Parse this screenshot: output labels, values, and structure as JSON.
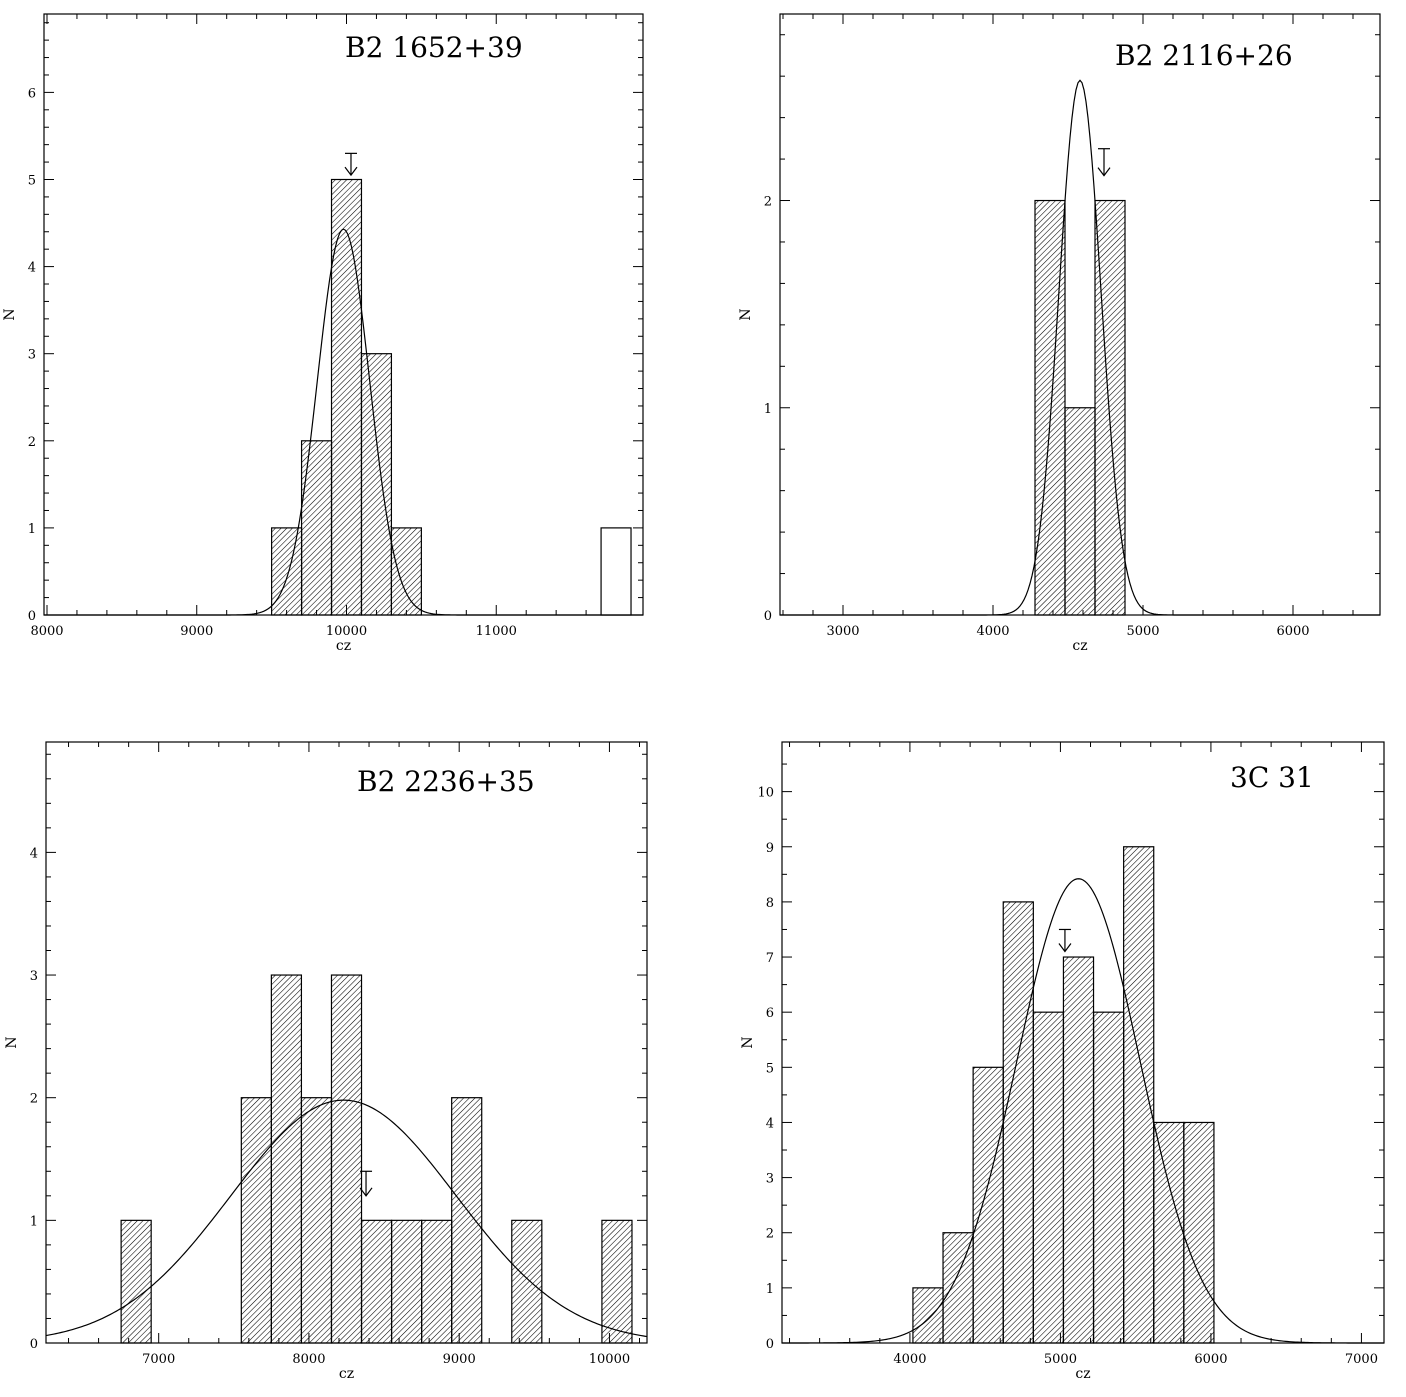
{
  "figure": {
    "colors": {
      "ink": "#000000",
      "background": "#ffffff"
    }
  },
  "chart_data": [
    {
      "type": "bar",
      "title": "B2 1652+39",
      "xlabel": "cz",
      "ylabel": "N",
      "xlim": [
        7980,
        11980
      ],
      "ylim": [
        0,
        6.9
      ],
      "xticks": [
        8000,
        9000,
        10000,
        11000
      ],
      "yticks": [
        0,
        1,
        2,
        3,
        4,
        5,
        6
      ],
      "x_minor_step": 200,
      "y_minor_step": 0.2,
      "bin_width": 200,
      "bins": [
        {
          "x0": 9500,
          "count": 1,
          "filled": true
        },
        {
          "x0": 9700,
          "count": 2,
          "filled": true
        },
        {
          "x0": 9900,
          "count": 5,
          "filled": true
        },
        {
          "x0": 10100,
          "count": 3,
          "filled": true
        },
        {
          "x0": 10300,
          "count": 1,
          "filled": true
        },
        {
          "x0": 11700,
          "count": 1,
          "filled": false
        }
      ],
      "gaussian": {
        "mean": 9980,
        "sigma": 175,
        "peak": 4.43
      },
      "arrow": {
        "x": 10030,
        "y_top": 5.3,
        "y_tip": 5.05
      }
    },
    {
      "type": "bar",
      "title": "B2 2116+26",
      "xlabel": "cz",
      "ylabel": "N",
      "xlim": [
        2580,
        6580
      ],
      "ylim": [
        0,
        2.9
      ],
      "xticks": [
        3000,
        4000,
        5000,
        6000
      ],
      "yticks": [
        0,
        1,
        2
      ],
      "x_minor_step": 200,
      "y_minor_step": 0.2,
      "bin_width": 200,
      "bins": [
        {
          "x0": 4280,
          "count": 2,
          "filled": true
        },
        {
          "x0": 4480,
          "count": 1,
          "filled": true
        },
        {
          "x0": 4680,
          "count": 2,
          "filled": true
        }
      ],
      "gaussian": {
        "mean": 4580,
        "sigma": 140,
        "peak": 2.58
      },
      "arrow": {
        "x": 4740,
        "y_top": 2.25,
        "y_tip": 2.12
      }
    },
    {
      "type": "bar",
      "title": "B2 2236+35",
      "xlabel": "cz",
      "ylabel": "N",
      "xlim": [
        6250,
        10250
      ],
      "ylim": [
        0,
        4.9
      ],
      "xticks": [
        7000,
        8000,
        9000,
        10000
      ],
      "yticks": [
        0,
        1,
        2,
        3,
        4
      ],
      "x_minor_step": 200,
      "y_minor_step": 0.2,
      "bin_width": 200,
      "bins": [
        {
          "x0": 6750,
          "count": 1,
          "filled": true
        },
        {
          "x0": 7550,
          "count": 2,
          "filled": true
        },
        {
          "x0": 7750,
          "count": 3,
          "filled": true
        },
        {
          "x0": 7950,
          "count": 2,
          "filled": true
        },
        {
          "x0": 8150,
          "count": 3,
          "filled": true
        },
        {
          "x0": 8350,
          "count": 1,
          "filled": true
        },
        {
          "x0": 8550,
          "count": 1,
          "filled": true
        },
        {
          "x0": 8750,
          "count": 1,
          "filled": true
        },
        {
          "x0": 8950,
          "count": 2,
          "filled": true
        },
        {
          "x0": 9350,
          "count": 1,
          "filled": true
        },
        {
          "x0": 9950,
          "count": 1,
          "filled": true
        }
      ],
      "gaussian": {
        "mean": 8230,
        "sigma": 750,
        "peak": 1.98
      },
      "arrow": {
        "x": 8380,
        "y_top": 1.4,
        "y_tip": 1.2
      }
    },
    {
      "type": "bar",
      "title": "3C 31",
      "xlabel": "cz",
      "ylabel": "N",
      "xlim": [
        3150,
        7150
      ],
      "ylim": [
        0,
        10.9
      ],
      "xticks": [
        4000,
        5000,
        6000,
        7000
      ],
      "yticks": [
        0,
        1,
        2,
        3,
        4,
        5,
        6,
        7,
        8,
        9,
        10
      ],
      "x_minor_step": 200,
      "y_minor_step": 0.5,
      "bin_width": 200,
      "bins": [
        {
          "x0": 4020,
          "count": 1,
          "filled": true
        },
        {
          "x0": 4220,
          "count": 2,
          "filled": true
        },
        {
          "x0": 4420,
          "count": 5,
          "filled": true
        },
        {
          "x0": 4620,
          "count": 8,
          "filled": true
        },
        {
          "x0": 4820,
          "count": 6,
          "filled": true
        },
        {
          "x0": 5020,
          "count": 7,
          "filled": true
        },
        {
          "x0": 5220,
          "count": 6,
          "filled": true
        },
        {
          "x0": 5420,
          "count": 9,
          "filled": true
        },
        {
          "x0": 5620,
          "count": 4,
          "filled": true
        },
        {
          "x0": 5820,
          "count": 4,
          "filled": true
        }
      ],
      "gaussian": {
        "mean": 5120,
        "sigma": 410,
        "peak": 8.42
      },
      "arrow": {
        "x": 5030,
        "y_top": 7.5,
        "y_tip": 7.1
      }
    }
  ]
}
